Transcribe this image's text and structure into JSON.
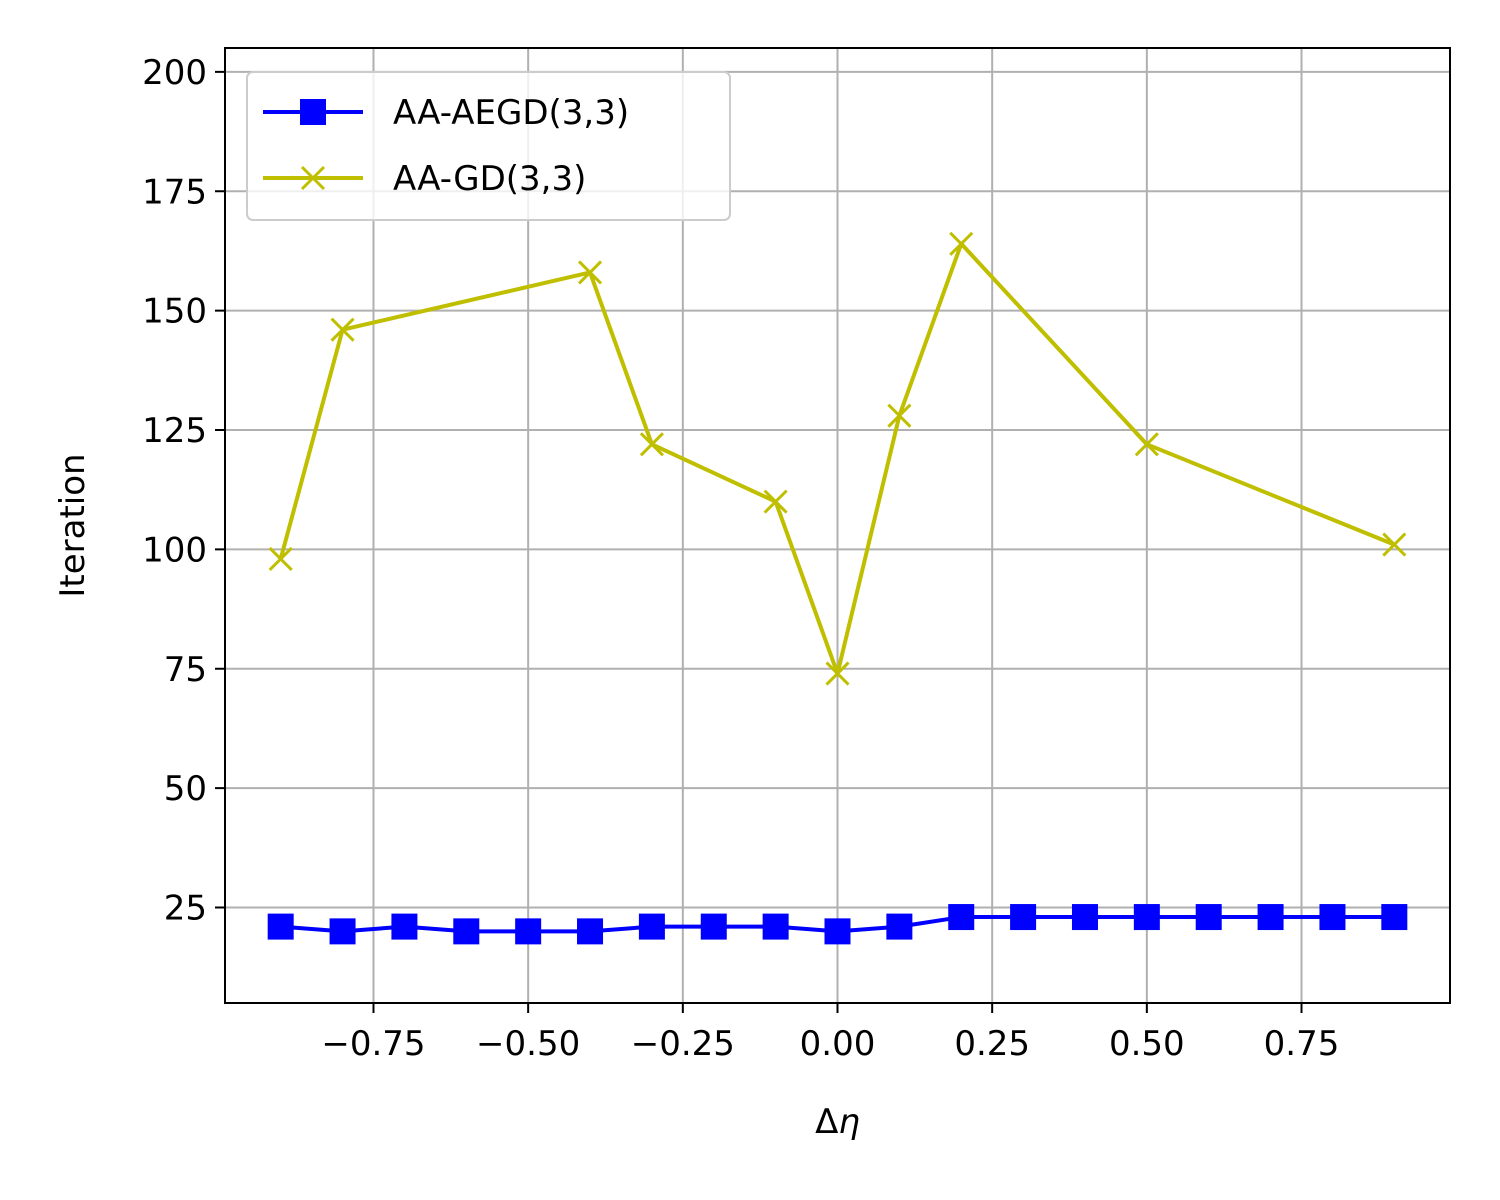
{
  "chart_data": {
    "type": "line",
    "title": "",
    "xlabel": "Δ",
    "xlabel_symbol": "η",
    "ylabel": "Iteration",
    "xlim": [
      -0.99,
      0.99
    ],
    "ylim": [
      5,
      205
    ],
    "xticks": [
      -0.75,
      -0.5,
      -0.25,
      0.0,
      0.25,
      0.5,
      0.75
    ],
    "xtick_labels": [
      "−0.75",
      "−0.50",
      "−0.25",
      "0.00",
      "0.25",
      "0.50",
      "0.75"
    ],
    "yticks": [
      25,
      50,
      75,
      100,
      125,
      150,
      175,
      200
    ],
    "ytick_labels": [
      "25",
      "50",
      "75",
      "100",
      "125",
      "150",
      "175",
      "200"
    ],
    "grid": true,
    "legend_position": "top-left",
    "series": [
      {
        "name": "AA-AEGD(3,3)",
        "color": "#0000ff",
        "marker": "square",
        "x": [
          -0.9,
          -0.8,
          -0.7,
          -0.6,
          -0.5,
          -0.4,
          -0.3,
          -0.2,
          -0.1,
          0.0,
          0.1,
          0.2,
          0.3,
          0.4,
          0.5,
          0.6,
          0.7,
          0.8,
          0.9
        ],
        "y": [
          21,
          20,
          21,
          20,
          20,
          20,
          21,
          21,
          21,
          20,
          21,
          23,
          23,
          23,
          23,
          23,
          23,
          23,
          23
        ]
      },
      {
        "name": "AA-GD(3,3)",
        "color": "#bfbf00",
        "marker": "x",
        "x": [
          -0.9,
          -0.8,
          -0.4,
          -0.3,
          -0.1,
          0.0,
          0.1,
          0.2,
          0.5,
          0.9
        ],
        "y": [
          98,
          146,
          158,
          122,
          110,
          74,
          128,
          164,
          122,
          101
        ]
      }
    ]
  }
}
